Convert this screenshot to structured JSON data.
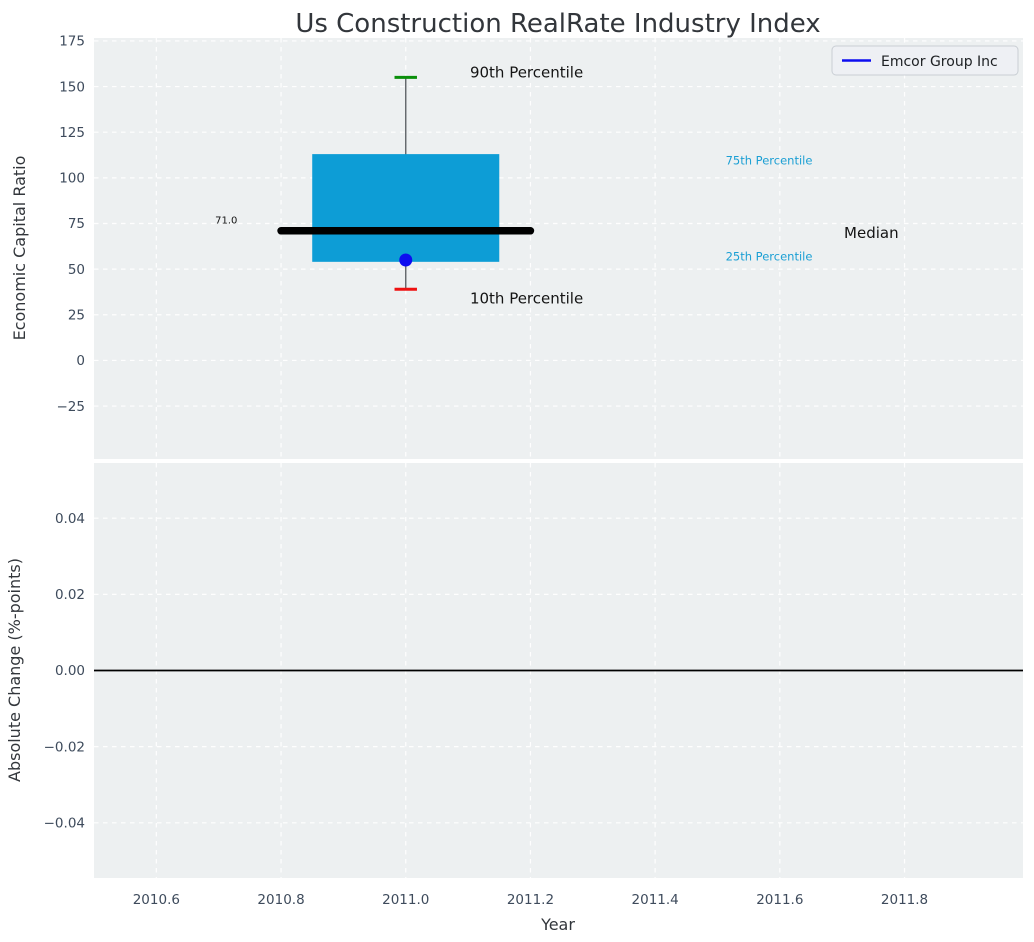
{
  "figure": {
    "title": "Us Construction RealRate Industry Index"
  },
  "legend": {
    "label": "Emcor Group Inc",
    "line_color": "#0d0df0",
    "bg_color": "#eef0f4",
    "border_color": "#c9ced4"
  },
  "chart_data": {
    "type": "boxplot",
    "title": "Us Construction RealRate Industry Index",
    "xlabel": "Year",
    "xlim": [
      2010.5,
      2011.99
    ],
    "xticks": [
      {
        "label": "2010.6",
        "v": 2010.6
      },
      {
        "label": "2010.8",
        "v": 2010.8
      },
      {
        "label": "2011.0",
        "v": 2011.0
      },
      {
        "label": "2011.2",
        "v": 2011.2
      },
      {
        "label": "2011.4",
        "v": 2011.4
      },
      {
        "label": "2011.6",
        "v": 2011.6
      },
      {
        "label": "2011.8",
        "v": 2011.8
      }
    ],
    "grid": {
      "on": true,
      "style": "dashed",
      "color": "#ffffff"
    },
    "panels": [
      {
        "name": "economic-capital-ratio",
        "ylabel": "Economic Capital Ratio",
        "ylim": [
          -54.0,
          176.6
        ],
        "yticks": [
          {
            "label": "175",
            "v": 175
          },
          {
            "label": "150",
            "v": 150
          },
          {
            "label": "125",
            "v": 125
          },
          {
            "label": "100",
            "v": 100
          },
          {
            "label": "75",
            "v": 75
          },
          {
            "label": "50",
            "v": 50
          },
          {
            "label": "25",
            "v": 25
          },
          {
            "label": "0",
            "v": 0
          },
          {
            "label": "−25",
            "v": -25
          }
        ],
        "box": {
          "x": 2011.0,
          "box_halfwidth": 0.15,
          "median_halfspan": 0.2,
          "cap_halfwidth": 0.018,
          "p10": 39,
          "p25": 54,
          "median": 71,
          "p75": 113,
          "p90": 155,
          "median_label": "71.0",
          "colors": {
            "box": "#0d9dd6",
            "median": "#000000",
            "whisker": "#5f6368",
            "p90_cap": "#0a8f0a",
            "p10_cap": "#ee1111"
          }
        },
        "company_point": {
          "label": "Emcor Group Inc",
          "x": 2011.0,
          "y": 55,
          "color": "#0d0df0",
          "radius": 6.5
        },
        "annotations": [
          {
            "text": "90th Percentile",
            "x": 2011.103,
            "y": 158.0,
            "color": "#141414",
            "size": 15,
            "anchor": "start"
          },
          {
            "text": "10th Percentile",
            "x": 2011.103,
            "y": 34.0,
            "color": "#141414",
            "size": 15,
            "anchor": "start"
          },
          {
            "text": "75th Percentile",
            "x": 2011.513,
            "y": 109.5,
            "color": "#1b9fd4",
            "size": 11.5,
            "anchor": "start"
          },
          {
            "text": "25th Percentile",
            "x": 2011.513,
            "y": 57.0,
            "color": "#1b9fd4",
            "size": 11.5,
            "anchor": "start"
          },
          {
            "text": "Median",
            "x": 2011.703,
            "y": 70.0,
            "color": "#141414",
            "size": 15,
            "anchor": "start"
          },
          {
            "text": "71.0",
            "x": 2010.73,
            "y": 77.0,
            "color": "#141414",
            "size": 10,
            "anchor": "end"
          }
        ]
      },
      {
        "name": "absolute-change",
        "ylabel": "Absolute Change (%-points)",
        "ylim": [
          -0.0545,
          0.0545
        ],
        "yticks": [
          {
            "label": "0.04",
            "v": 0.04
          },
          {
            "label": "0.02",
            "v": 0.02
          },
          {
            "label": "0.00",
            "v": 0.0
          },
          {
            "label": "−0.02",
            "v": -0.02
          },
          {
            "label": "−0.04",
            "v": -0.04
          }
        ],
        "zero_line": {
          "y": 0.0,
          "color": "#000000"
        }
      }
    ],
    "styles": {
      "plot_bg": "#edf0f1",
      "grid_color": "#ffffff",
      "tick_color": "#3e4b5c",
      "title_color": "#32363b",
      "axis_label_color": "#32363b"
    }
  }
}
